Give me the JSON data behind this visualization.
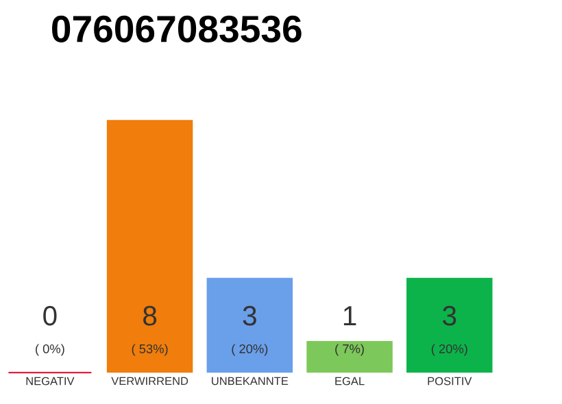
{
  "chart_data": {
    "type": "bar",
    "title": "076067083536",
    "categories": [
      "NEGATIV",
      "VERWIRREND",
      "UNBEKANNTE",
      "EGAL",
      "POSITIV"
    ],
    "values": [
      0,
      8,
      3,
      1,
      3
    ],
    "colors": [
      "#e0203c",
      "#f07d0c",
      "#6a9fea",
      "#7dc85a",
      "#0cb34a"
    ],
    "annotations": [
      "( 0%)",
      "( 53%)",
      "( 20%)",
      "( 7%)",
      "( 20%)"
    ],
    "data_labels": true,
    "ylim": [
      0,
      8
    ]
  }
}
